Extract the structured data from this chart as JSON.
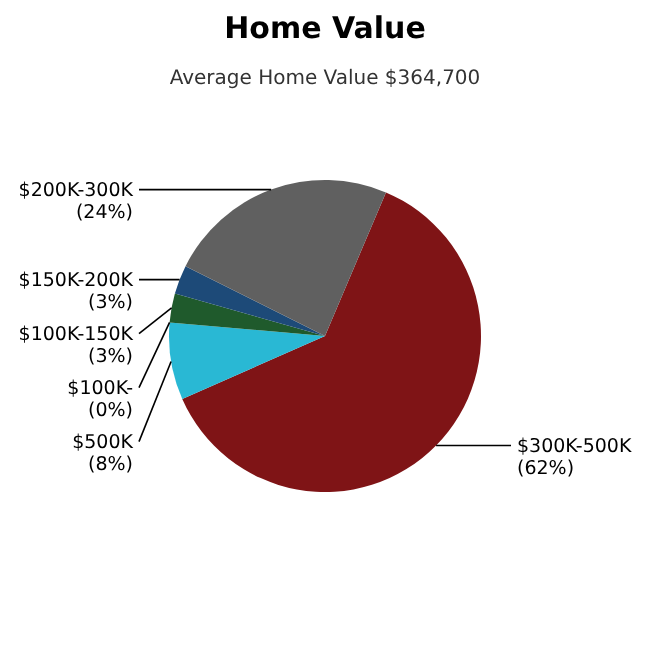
{
  "chart_data": {
    "type": "pie",
    "title": "Home Value",
    "subtitle": "Average Home Value  $364,700",
    "categories": [
      "$300K-500K",
      "$500K",
      "$100K-",
      "$100K-150K",
      "$150K-200K",
      "$200K-300K"
    ],
    "values": [
      62,
      8,
      0,
      3,
      3,
      24
    ],
    "value_labels": [
      "(62%)",
      "(8%)",
      "(0%)",
      "(3%)",
      "(3%)",
      "(24%)"
    ],
    "colors": [
      "#7f1416",
      "#29b8d4",
      "#8a8a3a",
      "#1f5a2c",
      "#1d4a78",
      "#606060"
    ],
    "legend": false
  }
}
